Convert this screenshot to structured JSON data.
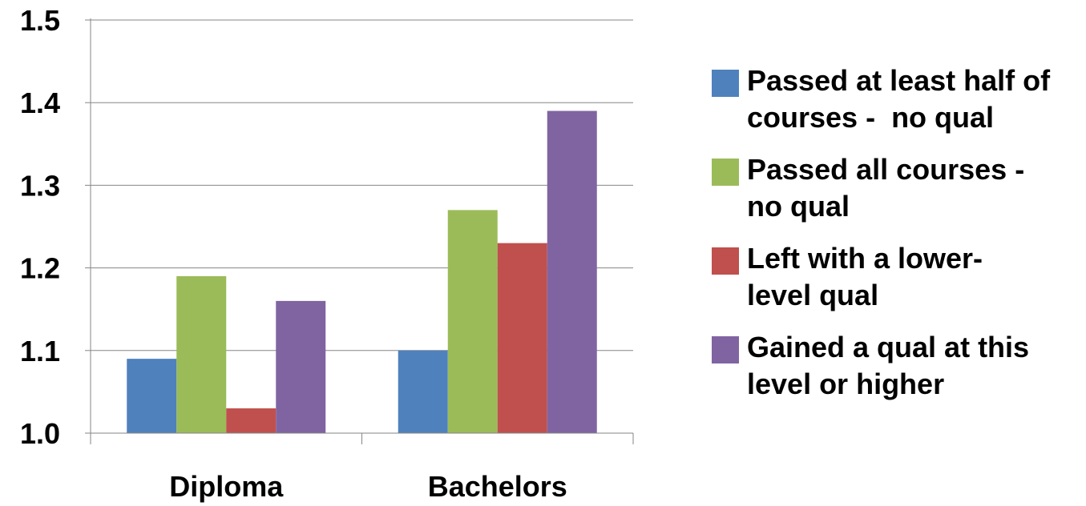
{
  "chart_data": {
    "type": "bar",
    "categories": [
      "Diploma",
      "Bachelors"
    ],
    "series": [
      {
        "name": "Passed at least half of courses -  no qual",
        "color": "#4F81BD",
        "values": [
          1.09,
          1.1
        ]
      },
      {
        "name": "Passed all courses - no qual",
        "color": "#9BBB59",
        "values": [
          1.19,
          1.27
        ]
      },
      {
        "name": "Left with a lower-level qual",
        "color": "#C0504D",
        "values": [
          1.03,
          1.23
        ]
      },
      {
        "name": "Gained a qual at this level or higher",
        "color": "#8064A2",
        "values": [
          1.16,
          1.39
        ]
      }
    ],
    "ylim": [
      1.0,
      1.5
    ],
    "yticks": [
      "1.0",
      "1.1",
      "1.2",
      "1.3",
      "1.4",
      "1.5"
    ],
    "grid": true,
    "legend_position": "right"
  },
  "legend": {
    "items": [
      {
        "label": "Passed at least half of\ncourses -  no qual",
        "color": "#4F81BD"
      },
      {
        "label": "Passed all courses -\nno qual",
        "color": "#9BBB59"
      },
      {
        "label": "Left with a lower-\nlevel qual",
        "color": "#C0504D"
      },
      {
        "label": "Gained a qual at this\nlevel or higher",
        "color": "#8064A2"
      }
    ]
  }
}
